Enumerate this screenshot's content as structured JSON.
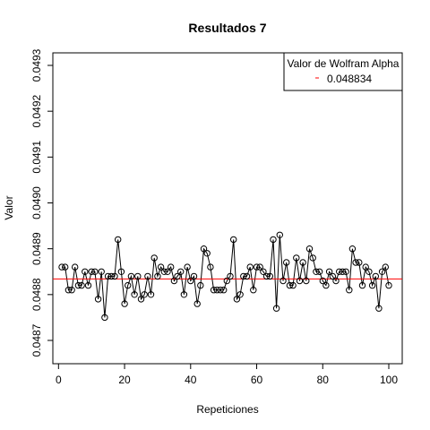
{
  "chart_data": {
    "type": "scatter",
    "title": "Resultados 7",
    "xlabel": "Repeticiones",
    "ylabel": "Valor",
    "xlim": [
      1,
      100
    ],
    "ylim": [
      0.04865,
      0.04933
    ],
    "xticks": [
      0,
      20,
      40,
      60,
      80,
      100
    ],
    "xtick_labels": [
      "0",
      "20",
      "40",
      "60",
      "80",
      "100"
    ],
    "yticks": [
      0.0487,
      0.0488,
      0.0489,
      0.049,
      0.0491,
      0.0492,
      0.0493
    ],
    "ytick_labels": [
      "0.0487",
      "0.0488",
      "0.0489",
      "0.0490",
      "0.0491",
      "0.0492",
      "0.0493"
    ],
    "grid": false,
    "reference_line": {
      "label": "Valor de Wolfram Alpha",
      "value": 0.048834,
      "value_label": "0.048834",
      "color": "#ff0000"
    },
    "legend": {
      "position": "top-right",
      "title": "Valor de Wolfram Alpha",
      "entries": [
        {
          "label": "0.048834",
          "color": "#ff0000"
        }
      ]
    },
    "series": [
      {
        "x": [
          1,
          2,
          3,
          4,
          5,
          6,
          7,
          8,
          9,
          10,
          11,
          12,
          13,
          14,
          15,
          16,
          17,
          18,
          19,
          20,
          21,
          22,
          23,
          24,
          25,
          26,
          27,
          28,
          29,
          30,
          31,
          32,
          33,
          34,
          35,
          36,
          37,
          38,
          39,
          40,
          41,
          42,
          43,
          44,
          45,
          46,
          47,
          48,
          49,
          50,
          51,
          52,
          53,
          54,
          55,
          56,
          57,
          58,
          59,
          60,
          61,
          62,
          63,
          64,
          65,
          66,
          67,
          68,
          69,
          70,
          71,
          72,
          73,
          74,
          75,
          76,
          77,
          78,
          79,
          80,
          81,
          82,
          83,
          84,
          85,
          86,
          87,
          88,
          89,
          90,
          91,
          92,
          93,
          94,
          95,
          96,
          97,
          98,
          99,
          100
        ],
        "values": [
          0.04886,
          0.04886,
          0.04881,
          0.04881,
          0.04886,
          0.04882,
          0.04882,
          0.04885,
          0.04882,
          0.04885,
          0.04885,
          0.04879,
          0.04885,
          0.04875,
          0.04884,
          0.04884,
          0.04884,
          0.04892,
          0.04885,
          0.04878,
          0.04882,
          0.04884,
          0.0488,
          0.04884,
          0.04879,
          0.0488,
          0.04884,
          0.0488,
          0.04888,
          0.04884,
          0.04886,
          0.04885,
          0.04885,
          0.04886,
          0.04883,
          0.04884,
          0.04885,
          0.0488,
          0.04886,
          0.04883,
          0.04884,
          0.04878,
          0.04882,
          0.0489,
          0.04889,
          0.04886,
          0.04881,
          0.04881,
          0.04881,
          0.04881,
          0.04883,
          0.04884,
          0.04892,
          0.04879,
          0.0488,
          0.04884,
          0.04884,
          0.04886,
          0.04881,
          0.04886,
          0.04886,
          0.04885,
          0.04884,
          0.04884,
          0.04892,
          0.04877,
          0.04893,
          0.04883,
          0.04887,
          0.04882,
          0.04882,
          0.04888,
          0.04883,
          0.04887,
          0.04883,
          0.0489,
          0.04888,
          0.04885,
          0.04885,
          0.04883,
          0.04882,
          0.04885,
          0.04884,
          0.04883,
          0.04885,
          0.04885,
          0.04885,
          0.04881,
          0.0489,
          0.04887,
          0.04887,
          0.04882,
          0.04886,
          0.04885,
          0.04882,
          0.04884,
          0.04877,
          0.04885,
          0.04886,
          0.04882
        ]
      }
    ]
  }
}
